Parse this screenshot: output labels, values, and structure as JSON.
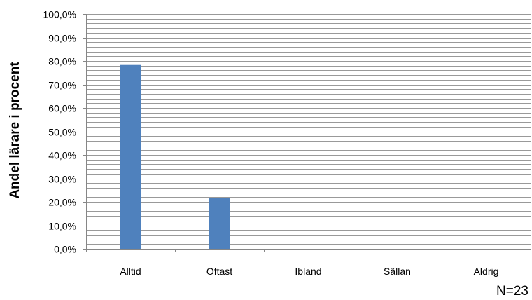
{
  "chart_data": {
    "type": "bar",
    "title": "",
    "xlabel": "",
    "ylabel": "Andel lärare i procent",
    "categories": [
      "Alltid",
      "Oftast",
      "Ibland",
      "Sällan",
      "Aldrig"
    ],
    "values": [
      78.3,
      21.7,
      0,
      0,
      0
    ],
    "ylim": [
      0,
      100
    ],
    "yticks": [
      "0,0%",
      "10,0%",
      "20,0%",
      "30,0%",
      "40,0%",
      "50,0%",
      "60,0%",
      "70,0%",
      "80,0%",
      "90,0%",
      "100,0%"
    ],
    "grid": true,
    "minor_grid_step": 2,
    "legend": "none",
    "bar_color": "#4F81BD",
    "grid_color": "#999999",
    "note": "N=23"
  }
}
